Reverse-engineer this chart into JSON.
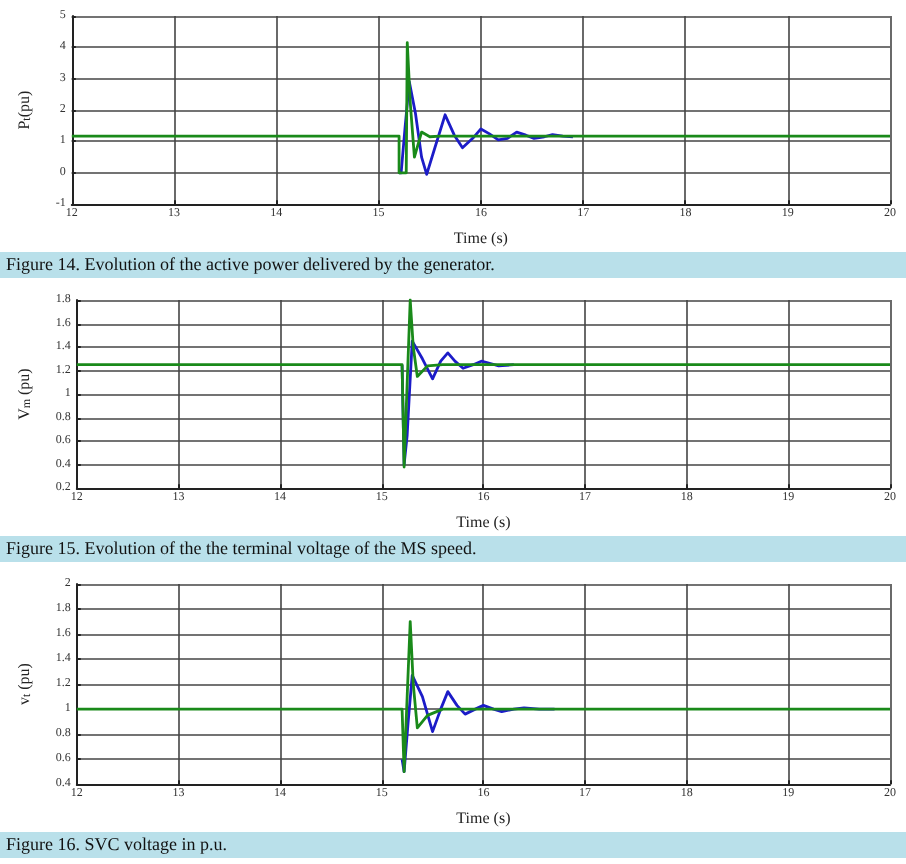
{
  "chart_data": [
    {
      "type": "line",
      "xlabel": "Time (s)",
      "ylabel": "P$_{t}$(pu)",
      "annotations": [
        "Figure 14. Evolution of the active power delivered by the generator."
      ],
      "xlim": [
        12,
        20
      ],
      "ylim": [
        -1,
        5
      ],
      "xticks": [
        12,
        13,
        14,
        15,
        16,
        17,
        18,
        19,
        20
      ],
      "yticks": [
        -1,
        0,
        1,
        2,
        3,
        4,
        5
      ],
      "grid": true,
      "marker": "none",
      "line_style": "solid",
      "series": [
        {
          "color": "#1c1cc8",
          "x": [
            15.2,
            15.22,
            15.26,
            15.3,
            15.36,
            15.42,
            15.47,
            15.55,
            15.65,
            15.74,
            15.82,
            15.92,
            16.0,
            16.08,
            16.17,
            16.26,
            16.35,
            16.44,
            16.52,
            16.62,
            16.7,
            16.8,
            16.9
          ],
          "values": [
            0,
            0,
            1.5,
            2.9,
            1.9,
            0.5,
            -0.05,
            0.8,
            1.85,
            1.2,
            0.8,
            1.1,
            1.4,
            1.25,
            1.05,
            1.1,
            1.3,
            1.2,
            1.1,
            1.15,
            1.22,
            1.17,
            1.15
          ]
        },
        {
          "color": "#1a8a1a",
          "x": [
            12,
            15.2,
            15.2,
            15.27,
            15.28,
            15.31,
            15.35,
            15.42,
            15.5,
            15.6,
            20
          ],
          "values": [
            1.17,
            1.17,
            0,
            0,
            4.15,
            2.2,
            0.5,
            1.3,
            1.15,
            1.17,
            1.17
          ]
        }
      ]
    },
    {
      "type": "line",
      "xlabel": "Time (s)",
      "ylabel": "V$_{m}$ (pu)",
      "annotations": [
        "Figure 15. Evolution of the the terminal voltage of the MS speed."
      ],
      "xlim": [
        12,
        20
      ],
      "ylim": [
        0.2,
        1.8
      ],
      "xticks": [
        12,
        13,
        14,
        15,
        16,
        17,
        18,
        19,
        20
      ],
      "yticks": [
        0.2,
        0.4,
        0.6,
        0.8,
        1,
        1.2,
        1.4,
        1.6,
        1.8
      ],
      "grid": true,
      "marker": "none",
      "line_style": "solid",
      "series": [
        {
          "color": "#1c1cc8",
          "x": [
            15.2,
            15.22,
            15.25,
            15.3,
            15.4,
            15.5,
            15.58,
            15.65,
            15.72,
            15.8,
            15.9,
            15.98,
            16.07,
            16.15,
            16.3
          ],
          "values": [
            1.25,
            0.4,
            0.65,
            1.45,
            1.3,
            1.13,
            1.28,
            1.35,
            1.28,
            1.22,
            1.25,
            1.28,
            1.26,
            1.24,
            1.25
          ]
        },
        {
          "color": "#1a8a1a",
          "x": [
            12,
            15.2,
            15.22,
            15.28,
            15.31,
            15.35,
            15.45,
            15.6,
            20
          ],
          "values": [
            1.25,
            1.25,
            0.38,
            1.8,
            1.4,
            1.15,
            1.24,
            1.25,
            1.25
          ]
        }
      ]
    },
    {
      "type": "line",
      "xlabel": "Time (s)",
      "ylabel": "v$_{t}$ (pu)",
      "annotations": [
        "Figure 16. SVC voltage in p.u."
      ],
      "xlim": [
        12,
        20
      ],
      "ylim": [
        0.4,
        2
      ],
      "xticks": [
        12,
        13,
        14,
        15,
        16,
        17,
        18,
        19,
        20
      ],
      "yticks": [
        0.4,
        0.6,
        0.8,
        1,
        1.2,
        1.4,
        1.6,
        1.8,
        2
      ],
      "grid": true,
      "marker": "none",
      "line_style": "solid",
      "series": [
        {
          "color": "#1c1cc8",
          "x": [
            15.2,
            15.22,
            15.26,
            15.3,
            15.4,
            15.5,
            15.58,
            15.65,
            15.74,
            15.82,
            15.92,
            16.0,
            16.1,
            16.18,
            16.3,
            16.4,
            16.55,
            16.7
          ],
          "values": [
            0.6,
            0.5,
            0.9,
            1.27,
            1.1,
            0.82,
            1.0,
            1.14,
            1.03,
            0.96,
            1.0,
            1.03,
            1.0,
            0.98,
            1.0,
            1.01,
            1.0,
            1.0
          ]
        },
        {
          "color": "#1a8a1a",
          "x": [
            12,
            15.2,
            15.22,
            15.28,
            15.31,
            15.35,
            15.45,
            15.6,
            20
          ],
          "values": [
            1.0,
            1.0,
            0.5,
            1.7,
            1.2,
            0.85,
            0.95,
            1.0,
            1.0
          ]
        }
      ]
    }
  ]
}
